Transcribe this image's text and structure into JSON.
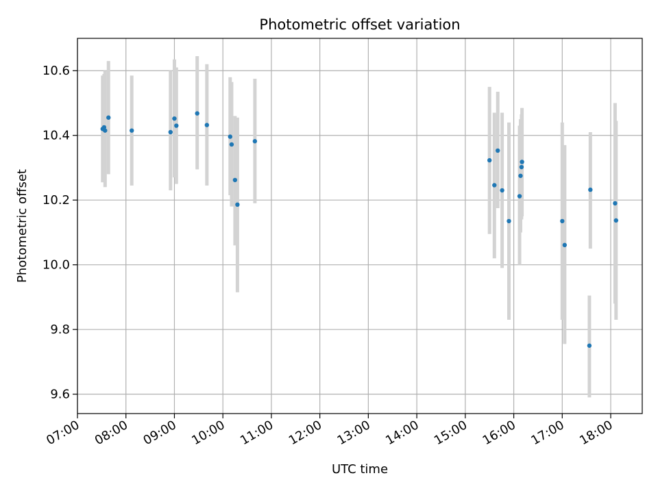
{
  "chart_data": {
    "type": "scatter",
    "title": "Photometric offset variation",
    "xlabel": "UTC time",
    "ylabel": "Photometric offset",
    "x_ticks": [
      "07:00",
      "08:00",
      "09:00",
      "10:00",
      "11:00",
      "12:00",
      "13:00",
      "14:00",
      "15:00",
      "16:00",
      "17:00",
      "18:00"
    ],
    "y_ticks": [
      "9.6",
      "9.8",
      "10.0",
      "10.2",
      "10.4",
      "10.6"
    ],
    "x_unit": "UTC hour",
    "xlim": [
      7.0,
      18.65
    ],
    "ylim": [
      9.54,
      10.7
    ],
    "grid": true,
    "marker_color": "#1f77b4",
    "errorbar_color": "#d3d3d3",
    "points": [
      {
        "x": 7.52,
        "y": 10.42,
        "yerr_low": 10.255,
        "yerr_high": 10.585
      },
      {
        "x": 7.55,
        "y": 10.425,
        "yerr_low": 10.26,
        "yerr_high": 10.59
      },
      {
        "x": 7.57,
        "y": 10.415,
        "yerr_low": 10.24,
        "yerr_high": 10.6
      },
      {
        "x": 7.64,
        "y": 10.455,
        "yerr_low": 10.28,
        "yerr_high": 10.63
      },
      {
        "x": 8.12,
        "y": 10.415,
        "yerr_low": 10.245,
        "yerr_high": 10.585
      },
      {
        "x": 8.92,
        "y": 10.41,
        "yerr_low": 10.23,
        "yerr_high": 10.6
      },
      {
        "x": 9.0,
        "y": 10.452,
        "yerr_low": 10.27,
        "yerr_high": 10.635
      },
      {
        "x": 9.04,
        "y": 10.43,
        "yerr_low": 10.25,
        "yerr_high": 10.61
      },
      {
        "x": 9.47,
        "y": 10.468,
        "yerr_low": 10.295,
        "yerr_high": 10.645
      },
      {
        "x": 9.67,
        "y": 10.432,
        "yerr_low": 10.245,
        "yerr_high": 10.62
      },
      {
        "x": 10.15,
        "y": 10.396,
        "yerr_low": 10.215,
        "yerr_high": 10.58
      },
      {
        "x": 10.18,
        "y": 10.372,
        "yerr_low": 10.18,
        "yerr_high": 10.565
      },
      {
        "x": 10.25,
        "y": 10.262,
        "yerr_low": 10.06,
        "yerr_high": 10.46
      },
      {
        "x": 10.3,
        "y": 10.186,
        "yerr_low": 9.915,
        "yerr_high": 10.455
      },
      {
        "x": 10.66,
        "y": 10.382,
        "yerr_low": 10.19,
        "yerr_high": 10.575
      },
      {
        "x": 15.5,
        "y": 10.323,
        "yerr_low": 10.095,
        "yerr_high": 10.55
      },
      {
        "x": 15.6,
        "y": 10.246,
        "yerr_low": 10.02,
        "yerr_high": 10.47
      },
      {
        "x": 15.67,
        "y": 10.353,
        "yerr_low": 10.175,
        "yerr_high": 10.535
      },
      {
        "x": 15.76,
        "y": 10.23,
        "yerr_low": 9.99,
        "yerr_high": 10.47
      },
      {
        "x": 15.9,
        "y": 10.135,
        "yerr_low": 9.83,
        "yerr_high": 10.44
      },
      {
        "x": 16.12,
        "y": 10.212,
        "yerr_low": 10.0,
        "yerr_high": 10.43
      },
      {
        "x": 16.14,
        "y": 10.275,
        "yerr_low": 10.1,
        "yerr_high": 10.45
      },
      {
        "x": 16.16,
        "y": 10.302,
        "yerr_low": 10.14,
        "yerr_high": 10.465
      },
      {
        "x": 16.17,
        "y": 10.318,
        "yerr_low": 10.15,
        "yerr_high": 10.485
      },
      {
        "x": 17.0,
        "y": 10.135,
        "yerr_low": 9.83,
        "yerr_high": 10.44
      },
      {
        "x": 17.05,
        "y": 10.061,
        "yerr_low": 9.755,
        "yerr_high": 10.37
      },
      {
        "x": 17.56,
        "y": 9.75,
        "yerr_low": 9.59,
        "yerr_high": 9.905
      },
      {
        "x": 17.58,
        "y": 10.232,
        "yerr_low": 10.05,
        "yerr_high": 10.41
      },
      {
        "x": 18.09,
        "y": 10.19,
        "yerr_low": 9.88,
        "yerr_high": 10.5
      },
      {
        "x": 18.11,
        "y": 10.137,
        "yerr_low": 9.83,
        "yerr_high": 10.445
      }
    ]
  }
}
